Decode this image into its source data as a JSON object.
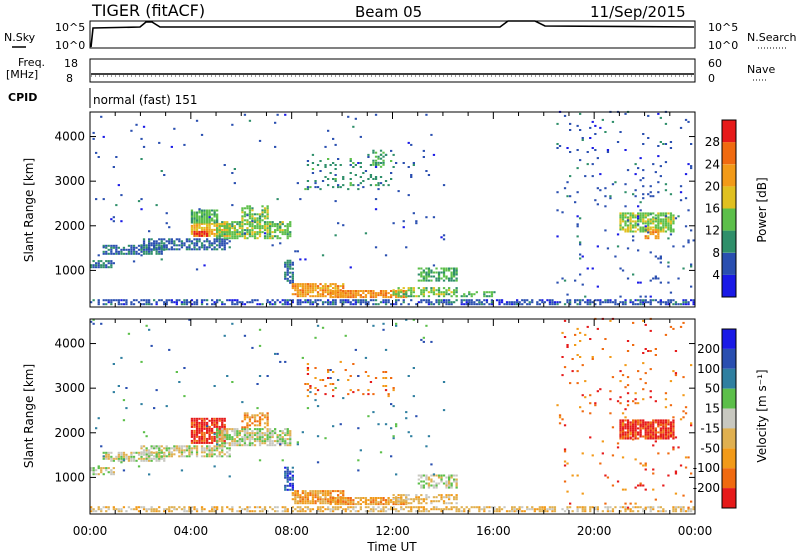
{
  "header": {
    "radar": "TIGER (fitACF)",
    "beam": "Beam 05",
    "date": "11/Sep/2015"
  },
  "panels": {
    "nsky": {
      "label": "N.Sky",
      "ticks": [
        "10^5",
        "10^0"
      ],
      "right_label": "N.Search",
      "right_ticks": [
        "10^5",
        "10^0"
      ]
    },
    "freq": {
      "label_line1": "Freq.",
      "label_line2": "[MHz]",
      "ticks": [
        "18",
        "8"
      ],
      "right_label": "Nave",
      "right_ticks": [
        "60",
        "0"
      ]
    },
    "cpid": {
      "label": "CPID",
      "text": "normal (fast) 151"
    }
  },
  "colors": {
    "power": [
      "#1a1ae6",
      "#2a4fb0",
      "#2f8f6a",
      "#5cbf4a",
      "#e0c020",
      "#f29a18",
      "#f06a10",
      "#e61a1a"
    ],
    "velocity": [
      "#1a1ae6",
      "#2a4fb0",
      "#2f7fa0",
      "#5cbf4a",
      "#c8c8c0",
      "#e0b050",
      "#f29a18",
      "#f06a10",
      "#e61a1a"
    ]
  },
  "chart_data": [
    {
      "type": "heatmap",
      "name": "power",
      "ylabel": "Slant Range [km]",
      "ylim": [
        180,
        4550
      ],
      "yticks": [
        1000,
        2000,
        3000,
        4000
      ],
      "colorbar": {
        "label": "Power [dB]",
        "ticks": [
          4,
          8,
          12,
          16,
          20,
          24,
          28
        ],
        "range": [
          0,
          32
        ]
      },
      "patches": [
        {
          "t0": 0.0,
          "t1": 24.0,
          "r0": 220,
          "r1": 330,
          "v": 6,
          "d": 0.6
        },
        {
          "t0": 0.0,
          "t1": 0.9,
          "r0": 1050,
          "r1": 1220,
          "v": 8,
          "d": 0.8
        },
        {
          "t0": 0.5,
          "t1": 3.0,
          "r0": 1350,
          "r1": 1550,
          "v": 8,
          "d": 0.75
        },
        {
          "t0": 2.0,
          "t1": 5.5,
          "r0": 1450,
          "r1": 1700,
          "v": 7,
          "d": 0.7
        },
        {
          "t0": 4.0,
          "t1": 5.5,
          "r0": 1750,
          "r1": 2050,
          "v": 20,
          "d": 0.85
        },
        {
          "t0": 4.0,
          "t1": 5.0,
          "r0": 2050,
          "r1": 2350,
          "v": 13,
          "d": 0.8
        },
        {
          "t0": 5.0,
          "t1": 7.9,
          "r0": 1700,
          "r1": 2100,
          "v": 14,
          "d": 0.8
        },
        {
          "t0": 6.0,
          "t1": 7.0,
          "r0": 2100,
          "r1": 2450,
          "v": 14,
          "d": 0.7
        },
        {
          "t0": 4.1,
          "t1": 4.6,
          "r0": 1750,
          "r1": 1850,
          "v": 28,
          "d": 0.9
        },
        {
          "t0": 7.7,
          "t1": 8.1,
          "r0": 700,
          "r1": 1200,
          "v": 8,
          "d": 0.6
        },
        {
          "t0": 8.0,
          "t1": 10.0,
          "r0": 400,
          "r1": 700,
          "v": 22,
          "d": 0.8
        },
        {
          "t0": 9.5,
          "t1": 12.5,
          "r0": 380,
          "r1": 560,
          "v": 23,
          "d": 0.8
        },
        {
          "t0": 12.0,
          "t1": 14.5,
          "r0": 400,
          "r1": 620,
          "v": 14,
          "d": 0.6
        },
        {
          "t0": 14.5,
          "t1": 16.0,
          "r0": 400,
          "r1": 500,
          "v": 13,
          "d": 0.5
        },
        {
          "t0": 13.0,
          "t1": 14.5,
          "r0": 750,
          "r1": 1050,
          "v": 12,
          "d": 0.6
        },
        {
          "t0": 8.5,
          "t1": 12.0,
          "r0": 2800,
          "r1": 3600,
          "v": 10,
          "d": 0.12
        },
        {
          "t0": 11.2,
          "t1": 11.6,
          "r0": 3300,
          "r1": 3700,
          "v": 12,
          "d": 0.5
        },
        {
          "t0": 21.0,
          "t1": 23.2,
          "r0": 1850,
          "r1": 2300,
          "v": 15,
          "d": 0.8
        },
        {
          "t0": 22.0,
          "t1": 22.6,
          "r0": 1700,
          "r1": 1900,
          "v": 22,
          "d": 0.7
        },
        {
          "t0": 18.5,
          "t1": 24.0,
          "r0": 300,
          "r1": 4550,
          "v": 6,
          "d": 0.035
        },
        {
          "t0": 0.0,
          "t1": 14.0,
          "r0": 1000,
          "r1": 4550,
          "v": 6,
          "d": 0.012
        }
      ]
    },
    {
      "type": "heatmap",
      "name": "velocity",
      "ylabel": "Slant Range [km]",
      "xlabel": "Time UT",
      "ylim": [
        180,
        4550
      ],
      "yticks": [
        1000,
        2000,
        3000,
        4000
      ],
      "xticks": [
        "00:00",
        "04:00",
        "08:00",
        "12:00",
        "16:00",
        "20:00",
        "00:00"
      ],
      "xlim": [
        0,
        24
      ],
      "colorbar": {
        "label": "Velocity [m s⁻¹]",
        "ticks": [
          200,
          100,
          50,
          15,
          -15,
          -50,
          -100,
          -200
        ]
      },
      "patches": [
        {
          "t0": 0.0,
          "t1": 24.0,
          "r0": 220,
          "r1": 330,
          "c": 5,
          "d": 0.55
        },
        {
          "t0": 0.0,
          "t1": 0.9,
          "r0": 1050,
          "r1": 1220,
          "c": 4,
          "d": 0.7
        },
        {
          "t0": 0.5,
          "t1": 3.0,
          "r0": 1350,
          "r1": 1550,
          "c": 4,
          "d": 0.75
        },
        {
          "t0": 2.0,
          "t1": 5.5,
          "r0": 1450,
          "r1": 1700,
          "c": 4,
          "d": 0.7
        },
        {
          "t0": 4.0,
          "t1": 5.3,
          "r0": 1750,
          "r1": 2300,
          "c": 8,
          "d": 0.85
        },
        {
          "t0": 5.0,
          "t1": 7.9,
          "r0": 1700,
          "r1": 2100,
          "c": 4,
          "d": 0.8
        },
        {
          "t0": 6.0,
          "t1": 7.0,
          "r0": 2100,
          "r1": 2450,
          "c": 6,
          "d": 0.6
        },
        {
          "t0": 7.7,
          "t1": 8.1,
          "r0": 700,
          "r1": 1200,
          "c": 1,
          "d": 0.6
        },
        {
          "t0": 8.0,
          "t1": 10.0,
          "r0": 400,
          "r1": 700,
          "c": 6,
          "d": 0.8
        },
        {
          "t0": 9.5,
          "t1": 12.5,
          "r0": 380,
          "r1": 560,
          "c": 6,
          "d": 0.8
        },
        {
          "t0": 12.0,
          "t1": 14.5,
          "r0": 400,
          "r1": 620,
          "c": 5,
          "d": 0.6
        },
        {
          "t0": 13.0,
          "t1": 14.5,
          "r0": 750,
          "r1": 1050,
          "c": 4,
          "d": 0.6
        },
        {
          "t0": 8.5,
          "t1": 12.0,
          "r0": 2800,
          "r1": 3600,
          "c": 7,
          "d": 0.12
        },
        {
          "t0": 21.0,
          "t1": 23.2,
          "r0": 1850,
          "r1": 2300,
          "c": 8,
          "d": 0.85
        },
        {
          "t0": 18.5,
          "t1": 24.0,
          "r0": 300,
          "r1": 4550,
          "c": 7,
          "d": 0.035
        },
        {
          "t0": 0.0,
          "t1": 14.0,
          "r0": 1000,
          "r1": 4550,
          "c": 2,
          "d": 0.012
        }
      ]
    }
  ]
}
